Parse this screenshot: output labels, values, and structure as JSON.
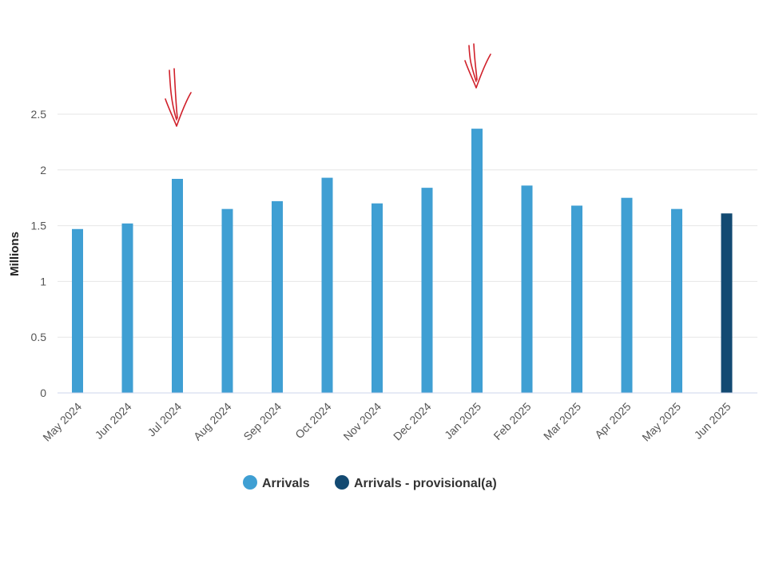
{
  "chart_data": {
    "type": "bar",
    "title": "",
    "xlabel": "",
    "ylabel": "Millions",
    "ylim": [
      0,
      2.5
    ],
    "yticks": [
      0,
      0.5,
      1,
      1.5,
      2,
      2.5
    ],
    "ytick_labels": [
      "0",
      "0.5",
      "1",
      "1.5",
      "2",
      "2.5"
    ],
    "grid": true,
    "legend_position": "bottom-center",
    "categories": [
      "May 2024",
      "Jun 2024",
      "Jul 2024",
      "Aug 2024",
      "Sep 2024",
      "Oct 2024",
      "Nov 2024",
      "Dec 2024",
      "Jan 2025",
      "Feb 2025",
      "Mar 2025",
      "Apr 2025",
      "May 2025",
      "Jun 2025"
    ],
    "series": [
      {
        "name": "Arrivals",
        "color": "#3f9fd3",
        "values": [
          1.47,
          1.52,
          1.92,
          1.65,
          1.72,
          1.93,
          1.7,
          1.84,
          2.37,
          1.86,
          1.68,
          1.75,
          1.65,
          null
        ]
      },
      {
        "name": "Arrivals - provisional(a)",
        "color": "#134a72",
        "values": [
          null,
          null,
          null,
          null,
          null,
          null,
          null,
          null,
          null,
          null,
          null,
          null,
          null,
          1.61
        ]
      }
    ],
    "annotations": [
      {
        "type": "hand-drawn-arrow",
        "color": "#d0202a",
        "category": "Jul 2024"
      },
      {
        "type": "hand-drawn-arrow",
        "color": "#d0202a",
        "category": "Jan 2025"
      }
    ]
  }
}
